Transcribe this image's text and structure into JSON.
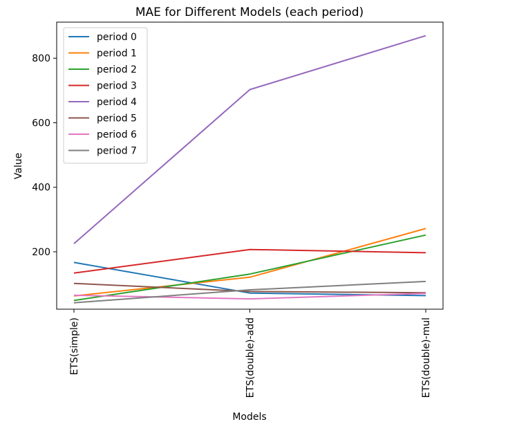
{
  "chart_data": {
    "type": "line",
    "title": "MAE for Different Models (each period)",
    "xlabel": "Models",
    "ylabel": "Value",
    "categories": [
      "ETS(simple)",
      "ETS(double)-add",
      "ETS(double)-mul"
    ],
    "ylim": [
      22,
      912
    ],
    "yticks": [
      200,
      400,
      600,
      800
    ],
    "grid": false,
    "legend_position": "top-left",
    "series": [
      {
        "name": "period 0",
        "color": "#1f77b4",
        "values": [
          167,
          72,
          64
        ]
      },
      {
        "name": "period 1",
        "color": "#ff7f0e",
        "values": [
          63,
          121,
          272
        ]
      },
      {
        "name": "period 2",
        "color": "#2ca02c",
        "values": [
          49,
          131,
          252
        ]
      },
      {
        "name": "period 3",
        "color": "#d62728",
        "values": [
          134,
          207,
          197
        ]
      },
      {
        "name": "period 4",
        "color": "#9467bd",
        "values": [
          225,
          703,
          870
        ]
      },
      {
        "name": "period 5",
        "color": "#8c564b",
        "values": [
          102,
          77,
          73
        ]
      },
      {
        "name": "period 6",
        "color": "#e377c2",
        "values": [
          65,
          54,
          71
        ]
      },
      {
        "name": "period 7",
        "color": "#7f7f7f",
        "values": [
          42,
          82,
          108
        ]
      }
    ]
  }
}
